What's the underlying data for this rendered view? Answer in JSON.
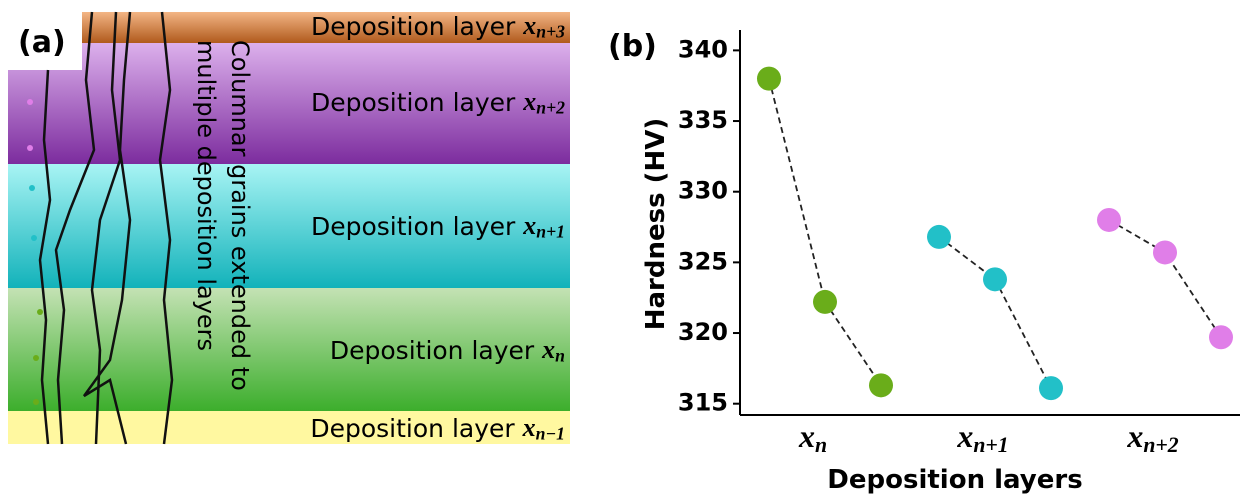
{
  "panel_a": {
    "label": "(a)",
    "layers": [
      {
        "text": "Deposition layer",
        "var": "x",
        "sub": "n+3"
      },
      {
        "text": "Deposition layer",
        "var": "x",
        "sub": "n+2"
      },
      {
        "text": "Deposition layer",
        "var": "x",
        "sub": "n+1"
      },
      {
        "text": "Deposition layer",
        "var": "x",
        "sub": "n"
      },
      {
        "text": "Deposition layer",
        "var": "x",
        "sub": "n−1"
      }
    ],
    "annotation": [
      "Columnar grains extended to",
      "multiple deposition layers"
    ]
  },
  "chart_data": {
    "type": "scatter",
    "panel_label": "(b)",
    "x_label": "Deposition layers",
    "y_label": "Hardness (HV)",
    "categories": [
      {
        "var": "x",
        "sub": "n"
      },
      {
        "var": "x",
        "sub": "n+1"
      },
      {
        "var": "x",
        "sub": "n+2"
      }
    ],
    "series": [
      {
        "color": "#6aad1a",
        "values": [
          338.0,
          322.2,
          316.3
        ]
      },
      {
        "color": "#22c0c8",
        "values": [
          326.8,
          323.8,
          316.1
        ]
      },
      {
        "color": "#e07ee8",
        "values": [
          328.0,
          325.7,
          319.7
        ]
      }
    ],
    "ylim": [
      314.2,
      341.3
    ],
    "yticks": [
      315,
      320,
      325,
      330,
      335,
      340
    ]
  }
}
